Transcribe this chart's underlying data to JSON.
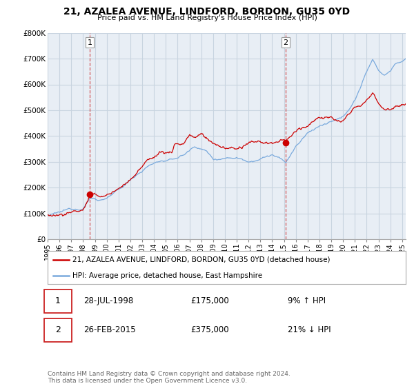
{
  "title": "21, AZALEA AVENUE, LINDFORD, BORDON, GU35 0YD",
  "subtitle": "Price paid vs. HM Land Registry's House Price Index (HPI)",
  "ylim": [
    0,
    800000
  ],
  "yticks": [
    0,
    100000,
    200000,
    300000,
    400000,
    500000,
    600000,
    700000,
    800000
  ],
  "ytick_labels": [
    "£0",
    "£100K",
    "£200K",
    "£300K",
    "£400K",
    "£500K",
    "£600K",
    "£700K",
    "£800K"
  ],
  "xlim_start": 1995.0,
  "xlim_end": 2025.3,
  "sale1_year": 1998.57,
  "sale1_price": 175000,
  "sale1_label": "1",
  "sale1_date": "28-JUL-1998",
  "sale1_hpi_pct": "9% ↑ HPI",
  "sale2_year": 2015.15,
  "sale2_price": 375000,
  "sale2_label": "2",
  "sale2_date": "26-FEB-2015",
  "sale2_hpi_pct": "21% ↓ HPI",
  "line_color_house": "#cc0000",
  "line_color_hpi": "#7aaadd",
  "vline_color": "#cc3333",
  "legend_label_house": "21, AZALEA AVENUE, LINDFORD, BORDON, GU35 0YD (detached house)",
  "legend_label_hpi": "HPI: Average price, detached house, East Hampshire",
  "footer": "Contains HM Land Registry data © Crown copyright and database right 2024.\nThis data is licensed under the Open Government Licence v3.0.",
  "background_color": "#ffffff",
  "chart_bg_color": "#e8eef5",
  "grid_color": "#c8d4e0"
}
